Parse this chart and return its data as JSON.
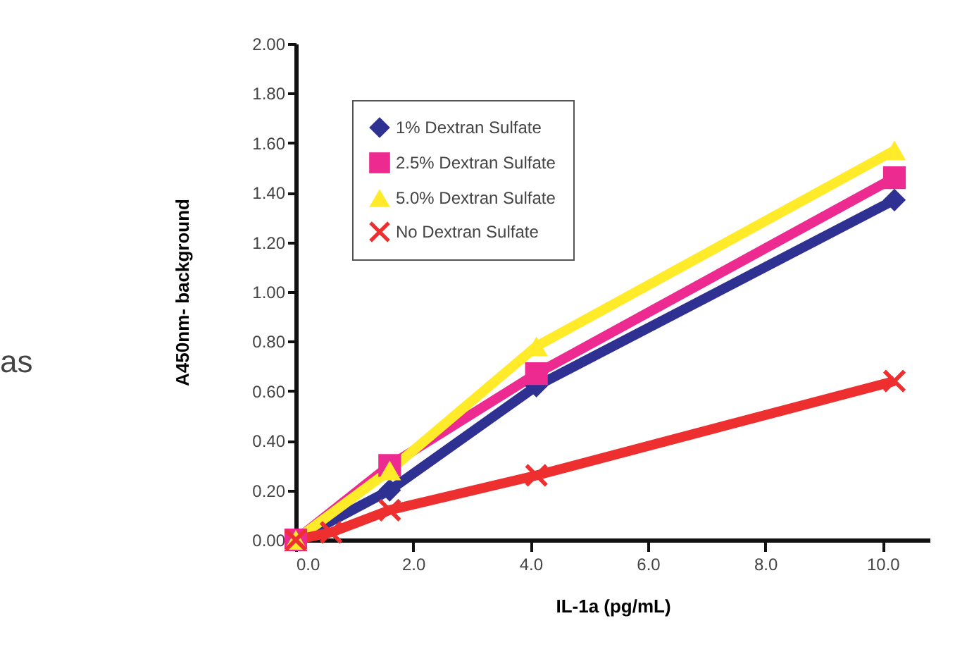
{
  "chart_data": {
    "type": "line",
    "xlabel": "IL-1a (pg/mL)",
    "ylabel": "A450nm- background",
    "annotations": [
      "as"
    ],
    "x": [
      0,
      1.6,
      4.1,
      10.2
    ],
    "series": [
      {
        "name": "1% Dextran Sulfate",
        "color": "#2e3192",
        "marker": "diamond",
        "values": [
          0,
          0.2,
          0.62,
          1.37
        ]
      },
      {
        "name": "2.5% Dextran Sulfate",
        "color": "#ec2a90",
        "marker": "square",
        "values": [
          0,
          0.3,
          0.67,
          1.46
        ]
      },
      {
        "name": "5.0% Dextran Sulfate",
        "color": "#ffeb2a",
        "marker": "triangle",
        "values": [
          0,
          0.28,
          0.78,
          1.57
        ]
      },
      {
        "name": "No Dextran Sulfate",
        "color": "#ed2f2f",
        "marker": "cross",
        "x": [
          0,
          0.6,
          1.6,
          4.1,
          10.2
        ],
        "values": [
          0,
          0.03,
          0.12,
          0.26,
          0.64
        ]
      }
    ],
    "xlim": [
      0,
      10.8
    ],
    "ylim": [
      0,
      2
    ],
    "xticks": [
      {
        "value": 0,
        "label": "0.0"
      },
      {
        "value": 2,
        "label": "2.0"
      },
      {
        "value": 4,
        "label": "4.0"
      },
      {
        "value": 6,
        "label": "6.0"
      },
      {
        "value": 8,
        "label": "8.0"
      },
      {
        "value": 10,
        "label": "10.0"
      }
    ],
    "yticks": [
      {
        "value": 0,
        "label": "0.00"
      },
      {
        "value": 0.2,
        "label": "0.20"
      },
      {
        "value": 0.4,
        "label": "0.40"
      },
      {
        "value": 0.6,
        "label": "0.60"
      },
      {
        "value": 0.8,
        "label": "0.80"
      },
      {
        "value": 1,
        "label": "1.00"
      },
      {
        "value": 1.2,
        "label": "1.20"
      },
      {
        "value": 1.4,
        "label": "1.40"
      },
      {
        "value": 1.6,
        "label": "1.60"
      },
      {
        "value": 1.8,
        "label": "1.80"
      },
      {
        "value": 2,
        "label": "2.00"
      }
    ],
    "grid": false,
    "legend": "top left",
    "line_style": "solid"
  }
}
